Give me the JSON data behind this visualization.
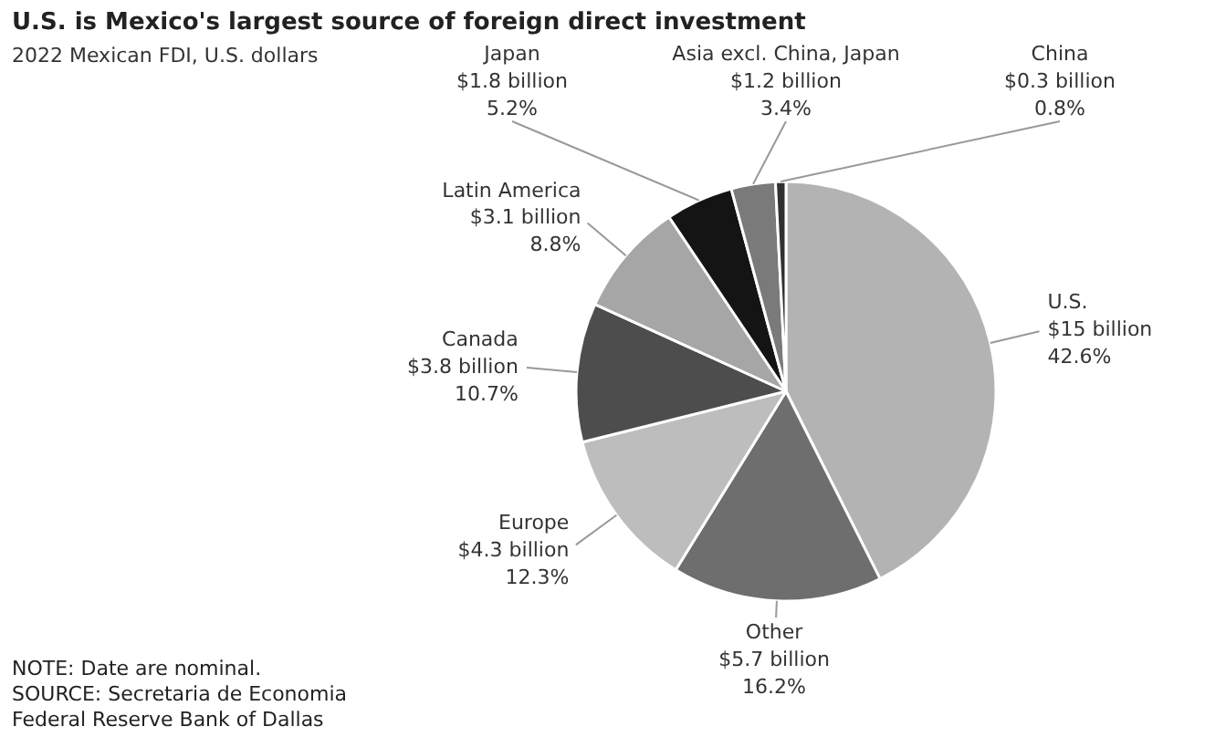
{
  "chart_data": {
    "type": "pie",
    "title": "U.S. is Mexico's largest source of foreign direct investment",
    "subtitle": "2022 Mexican FDI, U.S. dollars",
    "categories": [
      "U.S.",
      "Other",
      "Europe",
      "Canada",
      "Latin America",
      "Japan",
      "Asia excl. China, Japan",
      "China"
    ],
    "values": [
      42.6,
      16.2,
      12.3,
      10.7,
      8.8,
      5.2,
      3.4,
      0.8
    ],
    "value_labels": [
      "$15 billion\n42.6%",
      "$5.7 billion\n16.2%",
      "$4.3 billion\n12.3%",
      "$3.8 billion\n10.7%",
      "$3.1 billion\n8.8%",
      "$1.8 billion\n5.2%",
      "$1.2 billion\n3.4%",
      "$0.3 billion\n0.8%"
    ],
    "colors": [
      "#b3b3b3",
      "#6e6e6e",
      "#bdbdbd",
      "#4d4d4d",
      "#a6a6a6",
      "#141414",
      "#7a7a7a",
      "#303030"
    ],
    "annotations": [
      "NOTE: Date are nominal.",
      "SOURCE: Secretaria de Economia",
      "Federal Reserve Bank of Dallas"
    ]
  }
}
